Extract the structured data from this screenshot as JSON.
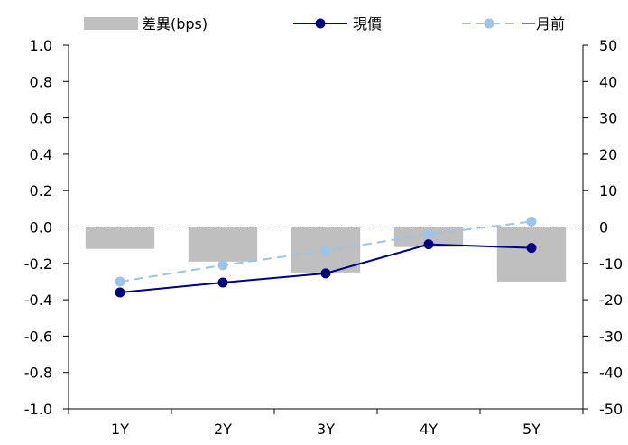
{
  "chart_data": {
    "type": "bar",
    "categories": [
      "1Y",
      "2Y",
      "3Y",
      "4Y",
      "5Y"
    ],
    "legend": [
      "差異(bps)",
      "現價",
      "一月前"
    ],
    "left_axis": {
      "ylim": [
        -1.0,
        1.0
      ],
      "ticks": [
        "1.0",
        "0.8",
        "0.6",
        "0.4",
        "0.2",
        "0.0",
        "-0.2",
        "-0.4",
        "-0.6",
        "-0.8",
        "-1.0"
      ]
    },
    "right_axis": {
      "ylim": [
        -50,
        50
      ],
      "ticks": [
        "50",
        "40",
        "30",
        "20",
        "10",
        "0",
        "-10",
        "-20",
        "-30",
        "-40",
        "-50"
      ]
    },
    "series": [
      {
        "name": "差異(bps)",
        "type": "bar",
        "axis": "right",
        "color": "#bfbfbf",
        "values": [
          -6,
          -9.5,
          -12.5,
          -5.5,
          -15
        ]
      },
      {
        "name": "現價",
        "type": "line",
        "axis": "left",
        "color": "#000080",
        "style": "solid",
        "values": [
          -0.36,
          -0.305,
          -0.255,
          -0.095,
          -0.115
        ]
      },
      {
        "name": "一月前",
        "type": "line",
        "axis": "left",
        "color": "#9dc3e6",
        "style": "dashed",
        "values": [
          -0.3,
          -0.21,
          -0.13,
          -0.04,
          0.03
        ]
      }
    ],
    "zero_line": "dashed",
    "legend_position": "top",
    "grid": false
  }
}
